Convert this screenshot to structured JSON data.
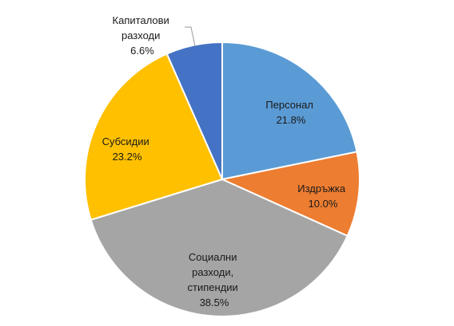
{
  "chart_data": {
    "type": "pie",
    "start_angle_deg": 0,
    "direction": "clockwise",
    "slices": [
      {
        "label_lines": [
          "Персонал"
        ],
        "value_label": "21.8%",
        "value": 21.8,
        "color": "#5b9bd5"
      },
      {
        "label_lines": [
          "Издръжка"
        ],
        "value_label": "10.0%",
        "value": 10.0,
        "color": "#ed7d31"
      },
      {
        "label_lines": [
          "Социални",
          "разходи,",
          "стипендии"
        ],
        "value_label": "38.5%",
        "value": 38.5,
        "color": "#a5a5a5"
      },
      {
        "label_lines": [
          "Субсидии"
        ],
        "value_label": "23.2%",
        "value": 23.2,
        "color": "#ffc000"
      },
      {
        "label_lines": [
          "Капиталови",
          "разходи"
        ],
        "value_label": "6.6%",
        "value": 6.6,
        "color": "#4472c4"
      }
    ]
  }
}
